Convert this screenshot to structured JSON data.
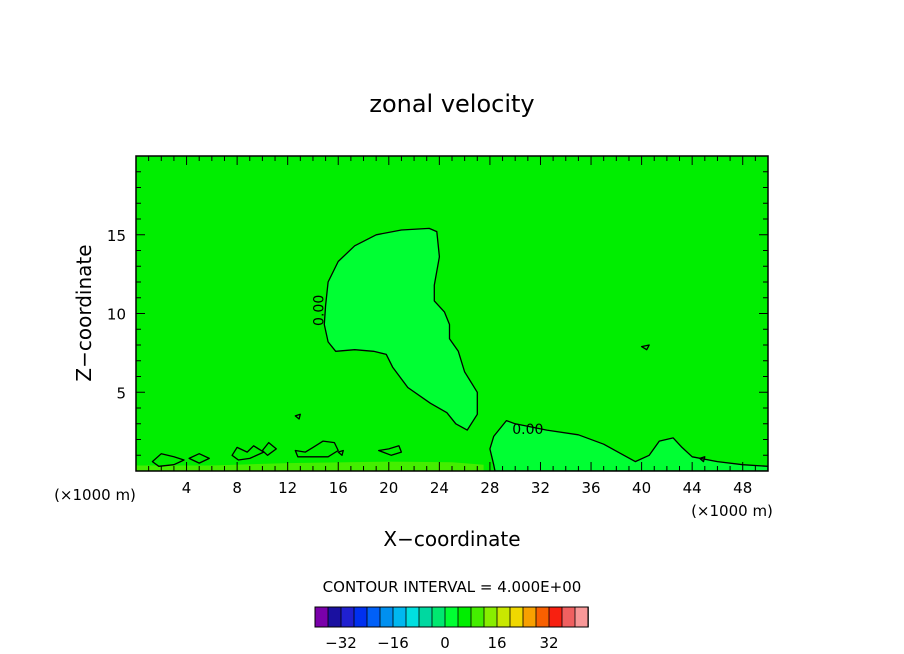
{
  "chart_data": {
    "type": "contour",
    "title": "zonal velocity",
    "xlabel": "X−coordinate",
    "ylabel": "Z−coordinate",
    "x_unit_left": "(×1000 m)",
    "x_unit_right": "(×1000 m)",
    "xlim": [
      0,
      50
    ],
    "ylim": [
      0,
      20
    ],
    "xticks": [
      4,
      8,
      12,
      16,
      20,
      24,
      28,
      32,
      36,
      40,
      44,
      48
    ],
    "yticks": [
      5,
      10,
      15
    ],
    "contour_labels": [
      {
        "text": "0.00",
        "x": 14.5,
        "y": 10.2,
        "rotate": -90
      },
      {
        "text": "0.00",
        "x": 31.0,
        "y": 2.6,
        "rotate": 0
      }
    ],
    "background_level_color": "#00ee00",
    "regions": [
      {
        "name": "plume",
        "color": "#00ff33",
        "outline": true,
        "points": [
          [
            15.0,
            10.5
          ],
          [
            15.2,
            12.0
          ],
          [
            16.0,
            13.3
          ],
          [
            17.3,
            14.3
          ],
          [
            19.0,
            15.0
          ],
          [
            21.0,
            15.3
          ],
          [
            23.2,
            15.4
          ],
          [
            23.8,
            15.2
          ],
          [
            24.0,
            13.6
          ],
          [
            23.6,
            11.8
          ],
          [
            23.6,
            10.8
          ],
          [
            24.4,
            10.1
          ],
          [
            24.8,
            9.3
          ],
          [
            24.8,
            8.4
          ],
          [
            25.5,
            7.6
          ],
          [
            26.0,
            6.3
          ],
          [
            27.0,
            5.0
          ],
          [
            27.0,
            3.6
          ],
          [
            26.2,
            2.6
          ],
          [
            25.3,
            3.0
          ],
          [
            24.6,
            3.7
          ],
          [
            23.3,
            4.3
          ],
          [
            21.5,
            5.3
          ],
          [
            20.3,
            6.6
          ],
          [
            19.8,
            7.4
          ],
          [
            18.8,
            7.6
          ],
          [
            17.3,
            7.7
          ],
          [
            15.8,
            7.6
          ],
          [
            15.2,
            8.2
          ],
          [
            14.9,
            9.3
          ]
        ]
      },
      {
        "name": "right-lobe",
        "color": "#00ff33",
        "outline": true,
        "points": [
          [
            28.3,
            0.4
          ],
          [
            28.0,
            1.4
          ],
          [
            28.3,
            2.2
          ],
          [
            29.3,
            3.2
          ],
          [
            30.0,
            3.0
          ],
          [
            32.5,
            2.6
          ],
          [
            35.0,
            2.3
          ],
          [
            37.0,
            1.7
          ],
          [
            38.6,
            1.0
          ],
          [
            39.5,
            0.6
          ],
          [
            40.6,
            1.0
          ],
          [
            41.4,
            1.9
          ],
          [
            42.5,
            2.1
          ],
          [
            43.2,
            1.5
          ],
          [
            44.0,
            0.9
          ],
          [
            46.0,
            0.6
          ],
          [
            48.0,
            0.4
          ],
          [
            50.0,
            0.3
          ],
          [
            50.0,
            0.0
          ],
          [
            28.4,
            0.0
          ]
        ]
      },
      {
        "name": "base-strip",
        "color": "#44ee00",
        "outline": false,
        "points": [
          [
            0,
            0
          ],
          [
            0,
            0.35
          ],
          [
            6,
            0.35
          ],
          [
            12,
            0.5
          ],
          [
            20,
            0.6
          ],
          [
            25,
            0.55
          ],
          [
            27.5,
            0.4
          ],
          [
            27.5,
            0
          ]
        ]
      }
    ],
    "small_contours": [
      [
        [
          1.3,
          0.6
        ],
        [
          2.0,
          1.1
        ],
        [
          3.0,
          0.9
        ],
        [
          3.8,
          0.7
        ],
        [
          3.0,
          0.4
        ],
        [
          1.8,
          0.3
        ]
      ],
      [
        [
          4.2,
          0.8
        ],
        [
          5.0,
          1.1
        ],
        [
          5.8,
          0.8
        ],
        [
          5.0,
          0.5
        ]
      ],
      [
        [
          7.6,
          1.0
        ],
        [
          8.0,
          1.5
        ],
        [
          8.8,
          1.2
        ],
        [
          9.3,
          1.6
        ],
        [
          10.1,
          1.2
        ],
        [
          9.0,
          0.8
        ],
        [
          8.1,
          0.7
        ]
      ],
      [
        [
          10.0,
          1.3
        ],
        [
          10.5,
          1.8
        ],
        [
          11.1,
          1.4
        ],
        [
          10.4,
          1.0
        ]
      ],
      [
        [
          12.6,
          3.5
        ],
        [
          13.0,
          3.6
        ],
        [
          12.9,
          3.3
        ]
      ],
      [
        [
          12.6,
          1.3
        ],
        [
          13.4,
          1.2
        ],
        [
          14.0,
          1.5
        ],
        [
          14.8,
          1.9
        ],
        [
          15.7,
          1.8
        ],
        [
          16.0,
          1.3
        ],
        [
          15.2,
          0.9
        ],
        [
          13.8,
          0.9
        ],
        [
          12.8,
          0.9
        ]
      ],
      [
        [
          16.0,
          1.2
        ],
        [
          16.4,
          1.3
        ],
        [
          16.3,
          1.0
        ]
      ],
      [
        [
          19.2,
          1.3
        ],
        [
          20.0,
          1.4
        ],
        [
          20.8,
          1.6
        ],
        [
          21.0,
          1.2
        ],
        [
          20.2,
          1.0
        ]
      ],
      [
        [
          40.0,
          7.9
        ],
        [
          40.6,
          8.0
        ],
        [
          40.4,
          7.7
        ]
      ],
      [
        [
          44.6,
          0.8
        ],
        [
          45.0,
          0.9
        ],
        [
          44.9,
          0.6
        ]
      ]
    ],
    "colorbar": {
      "caption": "CONTOUR INTERVAL =  4.000E+00",
      "colors": [
        "#7a00aa",
        "#1a10a0",
        "#2020d0",
        "#0030f0",
        "#0060f8",
        "#0090f0",
        "#00b8f0",
        "#00e0e0",
        "#00d8a0",
        "#00e870",
        "#00ff33",
        "#00ee00",
        "#44ee00",
        "#88ee00",
        "#c8e800",
        "#f0d800",
        "#f8a000",
        "#f86000",
        "#f82010",
        "#f06060",
        "#f89898"
      ],
      "tick_labels": [
        "−32",
        "−16",
        "0",
        "16",
        "32"
      ],
      "tick_values": [
        -32,
        -16,
        0,
        16,
        32
      ],
      "min": -40,
      "max": 44
    }
  }
}
